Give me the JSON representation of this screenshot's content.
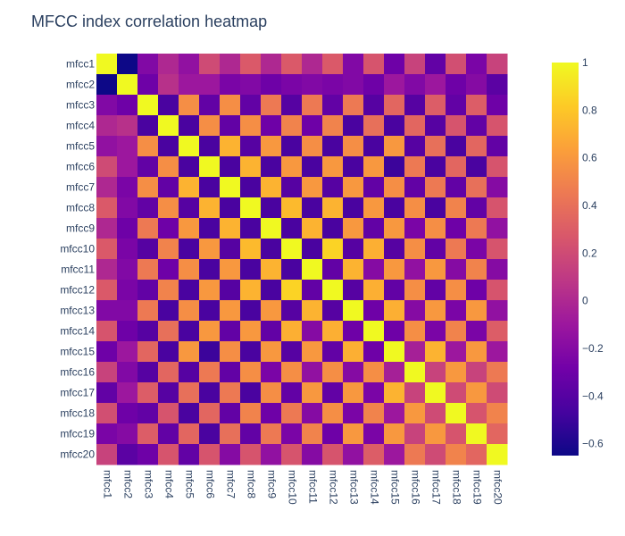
{
  "chart_data": {
    "type": "heatmap",
    "title": "MFCC index correlation heatmap",
    "x_labels": [
      "mfcc1",
      "mfcc2",
      "mfcc3",
      "mfcc4",
      "mfcc5",
      "mfcc6",
      "mfcc7",
      "mfcc8",
      "mfcc9",
      "mfcc10",
      "mfcc11",
      "mfcc12",
      "mfcc13",
      "mfcc14",
      "mfcc15",
      "mfcc16",
      "mfcc17",
      "mfcc18",
      "mfcc19",
      "mfcc20"
    ],
    "y_labels": [
      "mfcc1",
      "mfcc2",
      "mfcc3",
      "mfcc4",
      "mfcc5",
      "mfcc6",
      "mfcc7",
      "mfcc8",
      "mfcc9",
      "mfcc10",
      "mfcc11",
      "mfcc12",
      "mfcc13",
      "mfcc14",
      "mfcc15",
      "mfcc16",
      "mfcc17",
      "mfcc18",
      "mfcc19",
      "mfcc20"
    ],
    "z": [
      [
        1.0,
        -0.65,
        -0.22,
        0.0,
        -0.15,
        0.2,
        0.0,
        0.28,
        0.0,
        0.28,
        0.0,
        0.28,
        -0.22,
        0.25,
        -0.3,
        0.15,
        -0.35,
        0.22,
        -0.25,
        0.15
      ],
      [
        -0.65,
        1.0,
        -0.3,
        0.05,
        -0.1,
        -0.1,
        -0.25,
        -0.22,
        -0.3,
        -0.25,
        -0.22,
        -0.25,
        -0.22,
        -0.3,
        -0.1,
        -0.22,
        -0.1,
        -0.3,
        -0.2,
        -0.38
      ],
      [
        -0.22,
        -0.3,
        1.0,
        -0.45,
        0.55,
        -0.35,
        0.55,
        -0.35,
        0.45,
        -0.4,
        0.45,
        -0.35,
        0.45,
        -0.4,
        0.35,
        -0.4,
        0.3,
        -0.35,
        0.3,
        -0.3
      ],
      [
        0.0,
        0.05,
        -0.45,
        1.0,
        -0.45,
        0.55,
        -0.35,
        0.55,
        -0.3,
        0.5,
        -0.3,
        0.5,
        -0.45,
        0.4,
        -0.45,
        0.35,
        -0.4,
        0.25,
        -0.35,
        0.25
      ],
      [
        -0.15,
        -0.1,
        0.55,
        -0.45,
        1.0,
        -0.45,
        0.72,
        -0.4,
        0.6,
        -0.45,
        0.55,
        -0.45,
        0.55,
        -0.45,
        0.6,
        -0.4,
        0.4,
        -0.45,
        0.35,
        -0.35
      ],
      [
        0.2,
        -0.1,
        -0.35,
        0.55,
        -0.45,
        1.0,
        -0.45,
        0.72,
        -0.45,
        0.6,
        -0.45,
        0.6,
        -0.45,
        0.6,
        -0.5,
        0.45,
        -0.45,
        0.35,
        -0.45,
        0.25
      ],
      [
        0.0,
        -0.25,
        0.55,
        -0.35,
        0.72,
        -0.45,
        1.0,
        -0.45,
        0.72,
        -0.4,
        0.6,
        -0.4,
        0.6,
        -0.35,
        0.55,
        -0.35,
        0.45,
        -0.35,
        0.4,
        -0.2
      ],
      [
        0.28,
        -0.22,
        -0.35,
        0.55,
        -0.4,
        0.72,
        -0.45,
        1.0,
        -0.45,
        0.75,
        -0.45,
        0.72,
        -0.45,
        0.6,
        -0.45,
        0.55,
        -0.45,
        0.5,
        -0.35,
        0.25
      ],
      [
        0.0,
        -0.3,
        0.45,
        -0.3,
        0.6,
        -0.45,
        0.72,
        -0.45,
        1.0,
        -0.45,
        0.72,
        -0.45,
        0.6,
        -0.35,
        0.6,
        -0.25,
        0.55,
        -0.3,
        0.45,
        -0.15
      ],
      [
        0.28,
        -0.25,
        -0.4,
        0.5,
        -0.45,
        0.6,
        -0.4,
        0.75,
        -0.45,
        1.0,
        -0.45,
        0.85,
        -0.4,
        0.7,
        -0.4,
        0.55,
        -0.35,
        0.45,
        -0.25,
        0.25
      ],
      [
        0.0,
        -0.22,
        0.45,
        -0.3,
        0.55,
        -0.45,
        0.6,
        -0.45,
        0.72,
        -0.45,
        1.0,
        -0.35,
        0.72,
        -0.2,
        0.6,
        -0.15,
        0.6,
        -0.2,
        0.5,
        -0.2
      ],
      [
        0.28,
        -0.25,
        -0.35,
        0.5,
        -0.45,
        0.6,
        -0.4,
        0.72,
        -0.45,
        0.85,
        -0.35,
        1.0,
        -0.4,
        0.7,
        -0.35,
        0.55,
        -0.35,
        0.55,
        -0.3,
        0.25
      ],
      [
        -0.22,
        -0.22,
        0.45,
        -0.45,
        0.55,
        -0.45,
        0.6,
        -0.45,
        0.6,
        -0.4,
        0.72,
        -0.4,
        1.0,
        -0.3,
        0.7,
        -0.2,
        0.6,
        -0.25,
        0.6,
        -0.15
      ],
      [
        0.25,
        -0.3,
        -0.4,
        0.4,
        -0.45,
        0.6,
        -0.35,
        0.6,
        -0.35,
        0.7,
        -0.2,
        0.7,
        -0.3,
        1.0,
        -0.3,
        0.55,
        -0.25,
        0.5,
        -0.25,
        0.3
      ],
      [
        -0.3,
        -0.1,
        0.35,
        -0.45,
        0.6,
        -0.5,
        0.55,
        -0.45,
        0.6,
        -0.4,
        0.6,
        -0.35,
        0.7,
        -0.3,
        1.0,
        -0.05,
        0.72,
        -0.1,
        0.6,
        -0.1
      ],
      [
        0.15,
        -0.22,
        -0.4,
        0.35,
        -0.4,
        0.45,
        -0.35,
        0.55,
        -0.25,
        0.55,
        -0.15,
        0.55,
        -0.2,
        0.55,
        -0.05,
        1.0,
        0.15,
        0.6,
        0.15,
        0.45
      ],
      [
        -0.35,
        -0.1,
        0.3,
        -0.4,
        0.4,
        -0.45,
        0.45,
        -0.45,
        0.55,
        -0.35,
        0.6,
        -0.35,
        0.6,
        -0.25,
        0.72,
        0.15,
        1.0,
        0.2,
        0.6,
        0.2
      ],
      [
        0.22,
        -0.3,
        -0.35,
        0.25,
        -0.45,
        0.35,
        -0.35,
        0.5,
        -0.3,
        0.45,
        -0.2,
        0.55,
        -0.25,
        0.5,
        -0.1,
        0.6,
        0.2,
        1.0,
        0.25,
        0.5
      ],
      [
        -0.25,
        -0.2,
        0.3,
        -0.35,
        0.35,
        -0.45,
        0.4,
        -0.35,
        0.45,
        -0.25,
        0.5,
        -0.3,
        0.6,
        -0.25,
        0.6,
        0.15,
        0.6,
        0.25,
        1.0,
        0.35
      ],
      [
        0.15,
        -0.38,
        -0.3,
        0.25,
        -0.35,
        0.25,
        -0.2,
        0.25,
        -0.15,
        0.25,
        -0.2,
        0.25,
        -0.15,
        0.3,
        -0.1,
        0.45,
        0.2,
        0.5,
        0.35,
        1.0
      ]
    ],
    "zmin": -0.65,
    "zmax": 1.0,
    "colorscale": "Plasma",
    "colorbar_ticks": [
      1,
      0.8,
      0.6,
      0.4,
      0.2,
      0,
      -0.2,
      -0.4,
      -0.6
    ],
    "colors": {
      "plasma": [
        "#0d0887",
        "#46039f",
        "#7201a8",
        "#9c179e",
        "#bd3786",
        "#d8576b",
        "#ed7953",
        "#fb9f3a",
        "#fdca26",
        "#f0f921"
      ],
      "text": "#2a3f5f",
      "background": "#ffffff"
    }
  }
}
